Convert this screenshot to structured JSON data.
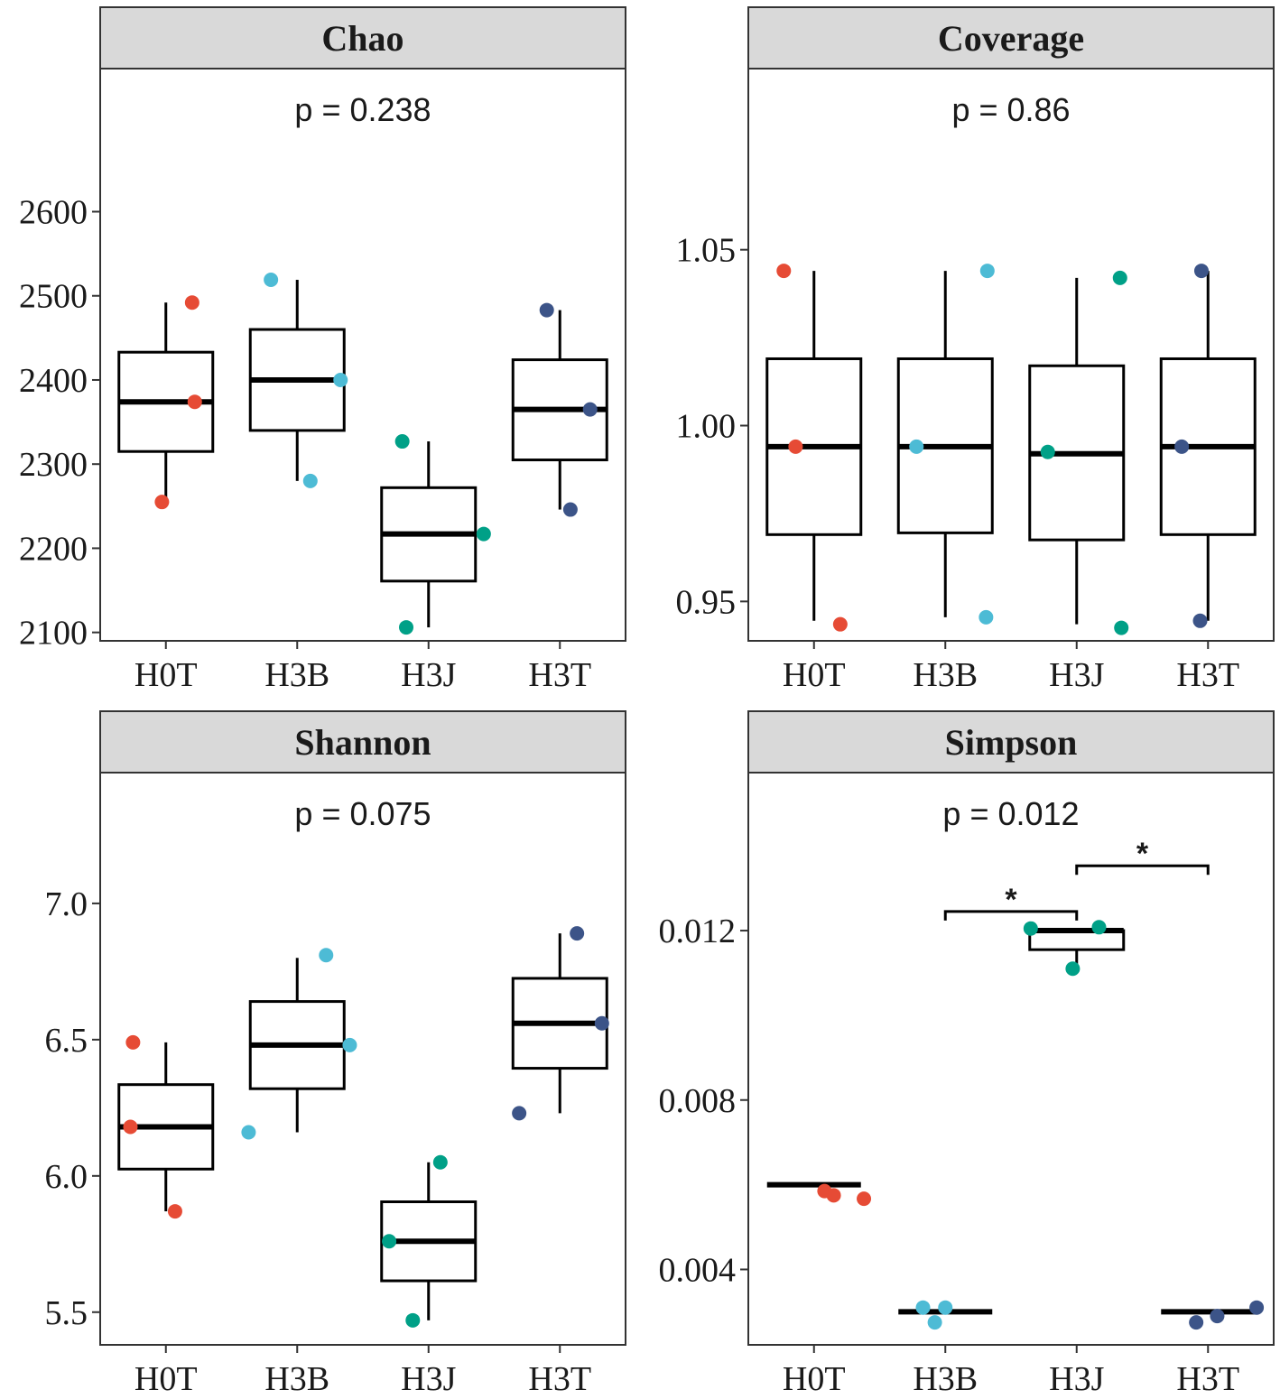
{
  "chart_data": [
    {
      "type": "box",
      "title": "Chao",
      "p_label": "p = 0.238",
      "categories": [
        "H0T",
        "H3B",
        "H3J",
        "H3T"
      ],
      "yticks": [
        2100,
        2200,
        2300,
        2400,
        2500,
        2600
      ],
      "ytick_labels": [
        "2100",
        "2200",
        "2300",
        "2400",
        "2500",
        "2600"
      ],
      "ylim": [
        2090,
        2770
      ],
      "boxes": [
        {
          "lower": 2255,
          "q1": 2315,
          "median": 2374,
          "q3": 2433,
          "upper": 2492
        },
        {
          "lower": 2280,
          "q1": 2340,
          "median": 2400,
          "q3": 2460,
          "upper": 2519
        },
        {
          "lower": 2106,
          "q1": 2161,
          "median": 2217,
          "q3": 2272,
          "upper": 2327
        },
        {
          "lower": 2246,
          "q1": 2305,
          "median": 2365,
          "q3": 2424,
          "upper": 2483
        }
      ],
      "points": [
        [
          {
            "dx": -0.03,
            "y": 2255
          },
          {
            "dx": 0.2,
            "y": 2492
          },
          {
            "dx": 0.22,
            "y": 2374
          }
        ],
        [
          {
            "dx": -0.2,
            "y": 2519
          },
          {
            "dx": 0.1,
            "y": 2280
          },
          {
            "dx": 0.33,
            "y": 2400
          }
        ],
        [
          {
            "dx": -0.2,
            "y": 2327
          },
          {
            "dx": -0.17,
            "y": 2106
          },
          {
            "dx": 0.42,
            "y": 2217
          }
        ],
        [
          {
            "dx": -0.1,
            "y": 2483
          },
          {
            "dx": 0.08,
            "y": 2246
          },
          {
            "dx": 0.23,
            "y": 2365
          }
        ]
      ],
      "brackets": []
    },
    {
      "type": "box",
      "title": "Coverage",
      "p_label": "p = 0.86",
      "categories": [
        "H0T",
        "H3B",
        "H3J",
        "H3T"
      ],
      "yticks": [
        0.95,
        1.0,
        1.05
      ],
      "ytick_labels": [
        "0.95",
        "1.00",
        "1.05"
      ],
      "ylim": [
        0.9388,
        1.1015
      ],
      "boxes": [
        {
          "lower": 0.9445,
          "q1": 0.969,
          "median": 0.994,
          "q3": 1.019,
          "upper": 1.044
        },
        {
          "lower": 0.9455,
          "q1": 0.9695,
          "median": 0.994,
          "q3": 1.019,
          "upper": 1.044
        },
        {
          "lower": 0.9435,
          "q1": 0.9675,
          "median": 0.992,
          "q3": 1.017,
          "upper": 1.042
        },
        {
          "lower": 0.9445,
          "q1": 0.969,
          "median": 0.994,
          "q3": 1.019,
          "upper": 1.044
        }
      ],
      "points": [
        [
          {
            "dx": -0.23,
            "y": 1.044
          },
          {
            "dx": -0.14,
            "y": 0.994
          },
          {
            "dx": 0.2,
            "y": 0.9435
          }
        ],
        [
          {
            "dx": -0.22,
            "y": 0.994
          },
          {
            "dx": 0.32,
            "y": 1.044
          },
          {
            "dx": 0.31,
            "y": 0.9455
          }
        ],
        [
          {
            "dx": -0.22,
            "y": 0.9925
          },
          {
            "dx": 0.33,
            "y": 1.042
          },
          {
            "dx": 0.34,
            "y": 0.9425
          }
        ],
        [
          {
            "dx": -0.2,
            "y": 0.994
          },
          {
            "dx": -0.05,
            "y": 1.044
          },
          {
            "dx": -0.06,
            "y": 0.9445
          }
        ]
      ],
      "brackets": []
    },
    {
      "type": "box",
      "title": "Shannon",
      "p_label": "p = 0.075",
      "categories": [
        "H0T",
        "H3B",
        "H3J",
        "H3T"
      ],
      "yticks": [
        5.5,
        6.0,
        6.5,
        7.0
      ],
      "ytick_labels": [
        "5.5",
        "6.0",
        "6.5",
        "7.0"
      ],
      "ylim": [
        5.38,
        7.48
      ],
      "boxes": [
        {
          "lower": 5.87,
          "q1": 6.025,
          "median": 6.18,
          "q3": 6.335,
          "upper": 6.49
        },
        {
          "lower": 6.16,
          "q1": 6.32,
          "median": 6.48,
          "q3": 6.64,
          "upper": 6.8
        },
        {
          "lower": 5.47,
          "q1": 5.615,
          "median": 5.76,
          "q3": 5.905,
          "upper": 6.05
        },
        {
          "lower": 6.23,
          "q1": 6.395,
          "median": 6.56,
          "q3": 6.725,
          "upper": 6.89
        }
      ],
      "points": [
        [
          {
            "dx": -0.25,
            "y": 6.49
          },
          {
            "dx": -0.27,
            "y": 6.18
          },
          {
            "dx": 0.07,
            "y": 5.87
          }
        ],
        [
          {
            "dx": -0.37,
            "y": 6.16
          },
          {
            "dx": 0.22,
            "y": 6.81
          },
          {
            "dx": 0.4,
            "y": 6.48
          }
        ],
        [
          {
            "dx": -0.3,
            "y": 5.76
          },
          {
            "dx": -0.12,
            "y": 5.47
          },
          {
            "dx": 0.09,
            "y": 6.05
          }
        ],
        [
          {
            "dx": -0.31,
            "y": 6.23
          },
          {
            "dx": 0.13,
            "y": 6.89
          },
          {
            "dx": 0.32,
            "y": 6.56
          }
        ]
      ],
      "brackets": []
    },
    {
      "type": "box",
      "title": "Simpson",
      "p_label": "p = 0.012",
      "categories": [
        "H0T",
        "H3B",
        "H3J",
        "H3T"
      ],
      "yticks": [
        0.004,
        0.008,
        0.012
      ],
      "ytick_labels": [
        "0.004",
        "0.008",
        "0.012"
      ],
      "ylim": [
        0.00222,
        0.01573
      ],
      "boxes": [
        {
          "lower": 0.006,
          "q1": 0.006,
          "median": 0.006,
          "q3": 0.006,
          "upper": 0.006
        },
        {
          "lower": 0.003,
          "q1": 0.003,
          "median": 0.003,
          "q3": 0.003,
          "upper": 0.003
        },
        {
          "lower": 0.0111,
          "q1": 0.01155,
          "median": 0.012,
          "q3": 0.012,
          "upper": 0.012
        },
        {
          "lower": 0.003,
          "q1": 0.003,
          "median": 0.003,
          "q3": 0.003,
          "upper": 0.003
        }
      ],
      "points": [
        [
          {
            "dx": 0.08,
            "y": 0.00585
          },
          {
            "dx": 0.15,
            "y": 0.00575
          },
          {
            "dx": 0.38,
            "y": 0.00567
          }
        ],
        [
          {
            "dx": -0.17,
            "y": 0.0031
          },
          {
            "dx": -0.08,
            "y": 0.00275
          },
          {
            "dx": 0.0,
            "y": 0.0031
          }
        ],
        [
          {
            "dx": -0.35,
            "y": 0.01205
          },
          {
            "dx": -0.03,
            "y": 0.0111
          },
          {
            "dx": 0.17,
            "y": 0.01208
          }
        ],
        [
          {
            "dx": -0.09,
            "y": 0.00275
          },
          {
            "dx": 0.07,
            "y": 0.0029
          },
          {
            "dx": 0.37,
            "y": 0.0031
          }
        ]
      ],
      "brackets": [
        {
          "from": 1,
          "to": 2,
          "y": 0.01245,
          "label": "*"
        },
        {
          "from": 2,
          "to": 3,
          "y": 0.01353,
          "label": "*"
        }
      ]
    }
  ],
  "colors": {
    "H0T": "#e64b35",
    "H3B": "#4dbbd5",
    "H3J": "#00a087",
    "H3T": "#3c5488",
    "strip_fill": "#d9d9d9",
    "line": "#000000",
    "frame": "#333333"
  }
}
